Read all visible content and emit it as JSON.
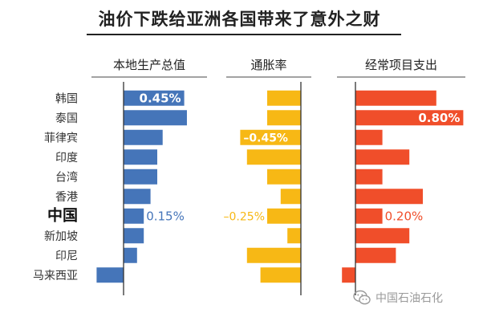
{
  "title": "油价下跌给亚洲各国带来了意外之财",
  "watermark": "中国石油石化",
  "colors": {
    "gdp": "#4575b9",
    "inflation": "#f7b815",
    "current_account": "#f04e2a",
    "axis": "#333333"
  },
  "countries": [
    "韩国",
    "泰国",
    "菲律宾",
    "印度",
    "台湾",
    "香港",
    "中国",
    "新加坡",
    "印尼",
    "马来西亚"
  ],
  "highlight_country": "中国",
  "chart_data": [
    {
      "type": "bar",
      "title": "本地生产总值",
      "categories": [
        "韩国",
        "泰国",
        "菲律宾",
        "印度",
        "台湾",
        "香港",
        "中国",
        "新加坡",
        "印尼",
        "马来西亚"
      ],
      "values": [
        0.45,
        0.47,
        0.29,
        0.25,
        0.25,
        0.2,
        0.15,
        0.15,
        0.1,
        -0.2
      ],
      "labels": {
        "0": "0.45%",
        "6": "0.15%"
      },
      "color": "#4575b9"
    },
    {
      "type": "bar",
      "title": "通胀率",
      "categories": [
        "韩国",
        "泰国",
        "菲律宾",
        "印度",
        "台湾",
        "香港",
        "中国",
        "新加坡",
        "印尼",
        "马来西亚"
      ],
      "values": [
        -0.25,
        -0.25,
        -0.45,
        -0.4,
        -0.25,
        -0.15,
        -0.25,
        -0.1,
        -0.4,
        -0.3
      ],
      "labels": {
        "2": "–0.45%",
        "6": "–0.25%"
      },
      "color": "#f7b815"
    },
    {
      "type": "bar",
      "title": "经常项目支出",
      "categories": [
        "韩国",
        "泰国",
        "菲律宾",
        "印度",
        "台湾",
        "香港",
        "中国",
        "新加坡",
        "印尼",
        "马来西亚"
      ],
      "values": [
        0.6,
        0.8,
        0.2,
        0.4,
        0.2,
        0.5,
        0.2,
        0.4,
        0.3,
        -0.1
      ],
      "labels": {
        "1": "0.80%",
        "6": "0.20%"
      },
      "color": "#f04e2a"
    }
  ]
}
